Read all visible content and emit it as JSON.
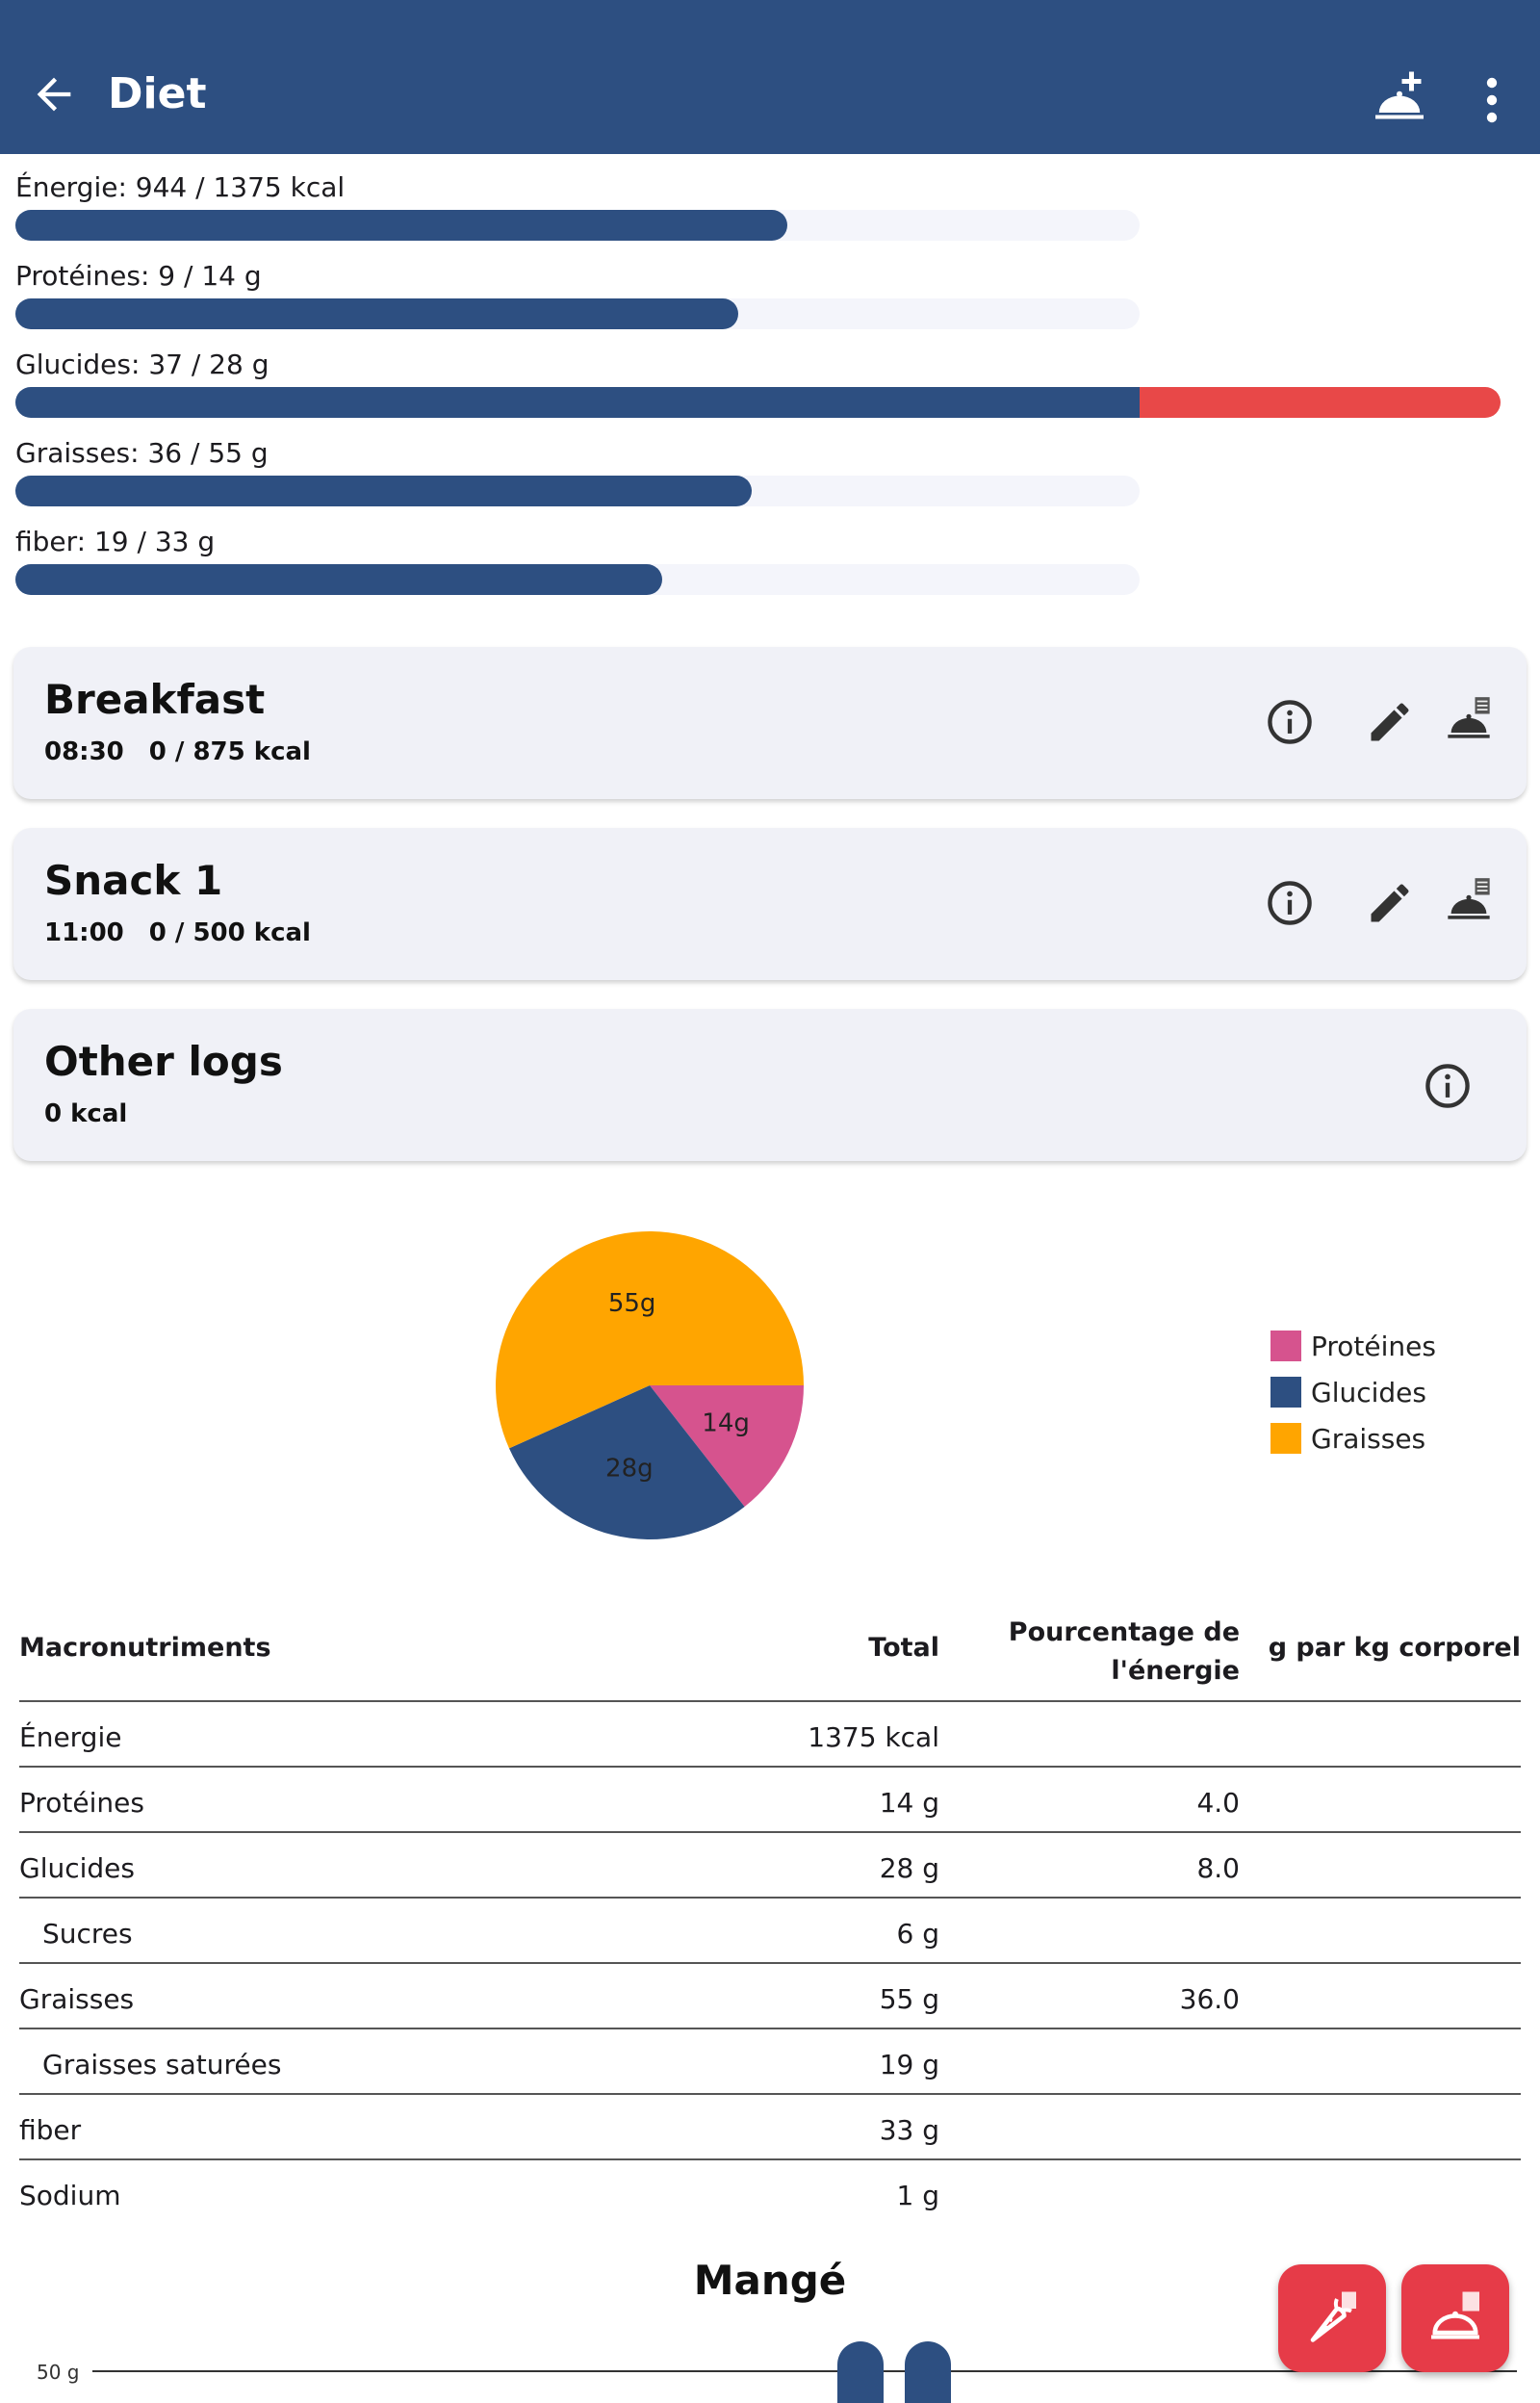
{
  "appbar": {
    "title": "Diet",
    "icons": [
      "back-arrow-icon",
      "add-meal-icon",
      "more-vert-icon"
    ]
  },
  "progress": [
    {
      "label": "Énergie: 944 / 1375 kcal",
      "value": 944,
      "goal": 1375
    },
    {
      "label": "Protéines: 9 / 14 g",
      "value": 9,
      "goal": 14
    },
    {
      "label": "Glucides: 37 / 28 g",
      "value": 37,
      "goal": 28
    },
    {
      "label": "Graisses: 36 / 55 g",
      "value": 36,
      "goal": 55
    },
    {
      "label": "fiber: 19 / 33 g",
      "value": 19,
      "goal": 33
    }
  ],
  "meals": [
    {
      "name": "Breakfast",
      "time": "08:30",
      "energy": "0 / 875 kcal"
    },
    {
      "name": "Snack 1",
      "time": "11:00",
      "energy": "0 / 500 kcal"
    },
    {
      "name": "Other logs",
      "time": "",
      "energy": "0 kcal"
    }
  ],
  "chart_data": {
    "type": "pie",
    "slices": [
      {
        "name": "Protéines",
        "value": 14,
        "label": "14g",
        "color": "#d6538e"
      },
      {
        "name": "Glucides",
        "value": 28,
        "label": "28g",
        "color": "#2d4f81"
      },
      {
        "name": "Graisses",
        "value": 55,
        "label": "55g",
        "color": "#ffa500"
      }
    ],
    "legend_position": "right"
  },
  "table": {
    "headers": {
      "macro": "Macronutriments",
      "total": "Total",
      "pct_line1": "Pourcentage de",
      "pct_line2": "l'énergie",
      "gkg": "g par kg corporel"
    },
    "rows": [
      {
        "name": "Énergie",
        "total": "1375 kcal",
        "pct": "",
        "gkg": "",
        "indent": false
      },
      {
        "name": "Protéines",
        "total": "14 g",
        "pct": "4.0",
        "gkg": "",
        "indent": false
      },
      {
        "name": "Glucides",
        "total": "28 g",
        "pct": "8.0",
        "gkg": "",
        "indent": false
      },
      {
        "name": "Sucres",
        "total": "6 g",
        "pct": "",
        "gkg": "",
        "indent": true
      },
      {
        "name": "Graisses",
        "total": "55 g",
        "pct": "36.0",
        "gkg": "",
        "indent": false
      },
      {
        "name": "Graisses saturées",
        "total": "19 g",
        "pct": "",
        "gkg": "",
        "indent": true
      },
      {
        "name": "fiber",
        "total": "33 g",
        "pct": "",
        "gkg": "",
        "indent": false
      },
      {
        "name": "Sodium",
        "total": "1 g",
        "pct": "",
        "gkg": "",
        "indent": false
      }
    ]
  },
  "eaten": {
    "title": "Mangé",
    "axis_label": "50 g"
  },
  "colors": {
    "primary": "#2d4f81",
    "over": "#e84848",
    "fab": "#e63b48",
    "card": "#f0f1f7"
  }
}
